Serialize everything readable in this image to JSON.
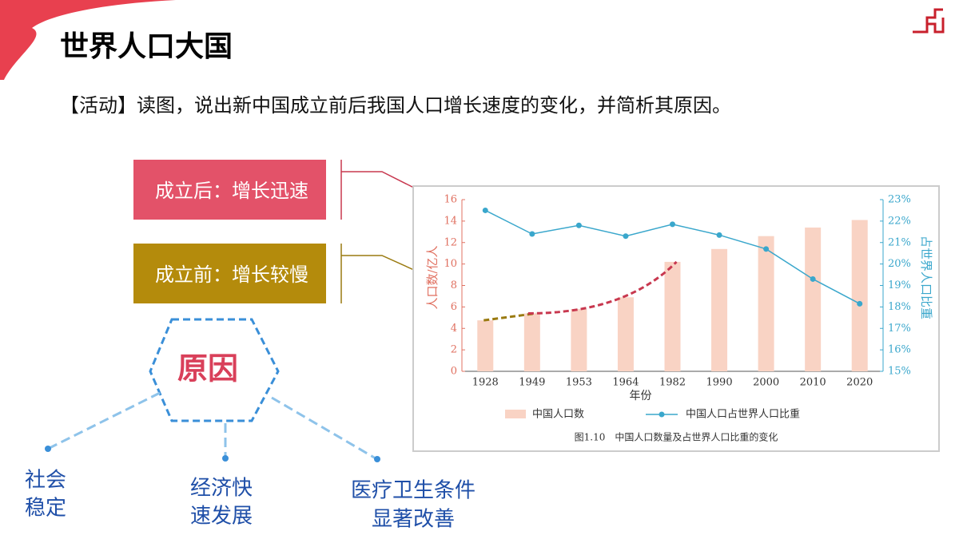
{
  "slide": {
    "title": "世界人口大国",
    "activity": "【活动】读图，说出新中国成立前后我国人口增长速度的变化，并简析其原因。",
    "after": "成立后：增长迅速",
    "before": "成立前：增长较慢",
    "reason": "原因",
    "factors": [
      [
        "社会",
        "稳定"
      ],
      [
        "经济快",
        "速发展"
      ],
      [
        "医疗卫生条件",
        "显著改善"
      ]
    ]
  },
  "chart_data": {
    "type": "bar",
    "categories": [
      "1928",
      "1949",
      "1953",
      "1964",
      "1982",
      "1990",
      "2000",
      "2010",
      "2020"
    ],
    "xlabel": "年份",
    "ylabel": "人口数/亿人",
    "y2label": "占世界人口比重",
    "caption": "图1.10　中国人口数量及占世界人口比重的变化",
    "ylim": [
      0,
      16
    ],
    "yticks": [
      0,
      2,
      4,
      6,
      8,
      10,
      12,
      14,
      16
    ],
    "y2lim": [
      15,
      23
    ],
    "y2ticks": [
      {
        "value": 15,
        "label": "15%"
      },
      {
        "value": 16,
        "label": "16%"
      },
      {
        "value": 17,
        "label": "17%"
      },
      {
        "value": 18,
        "label": "18%"
      },
      {
        "value": 19,
        "label": "19%"
      },
      {
        "value": 20,
        "label": "20%"
      },
      {
        "value": 21,
        "label": "21%"
      },
      {
        "value": 22,
        "label": "22%"
      },
      {
        "value": 23,
        "label": "23%"
      }
    ],
    "series": [
      {
        "name": "中国人口数",
        "type": "bar",
        "color": "#f9d3c4",
        "values": [
          4.75,
          5.4,
          5.8,
          6.9,
          10.2,
          11.4,
          12.6,
          13.4,
          14.1
        ]
      },
      {
        "name": "中国人口占世界人口比重",
        "type": "line",
        "axis": "y2",
        "color": "#3aa7cc",
        "values": [
          22.5,
          21.4,
          21.8,
          21.3,
          21.85,
          21.35,
          20.7,
          19.3,
          18.15
        ]
      }
    ]
  }
}
